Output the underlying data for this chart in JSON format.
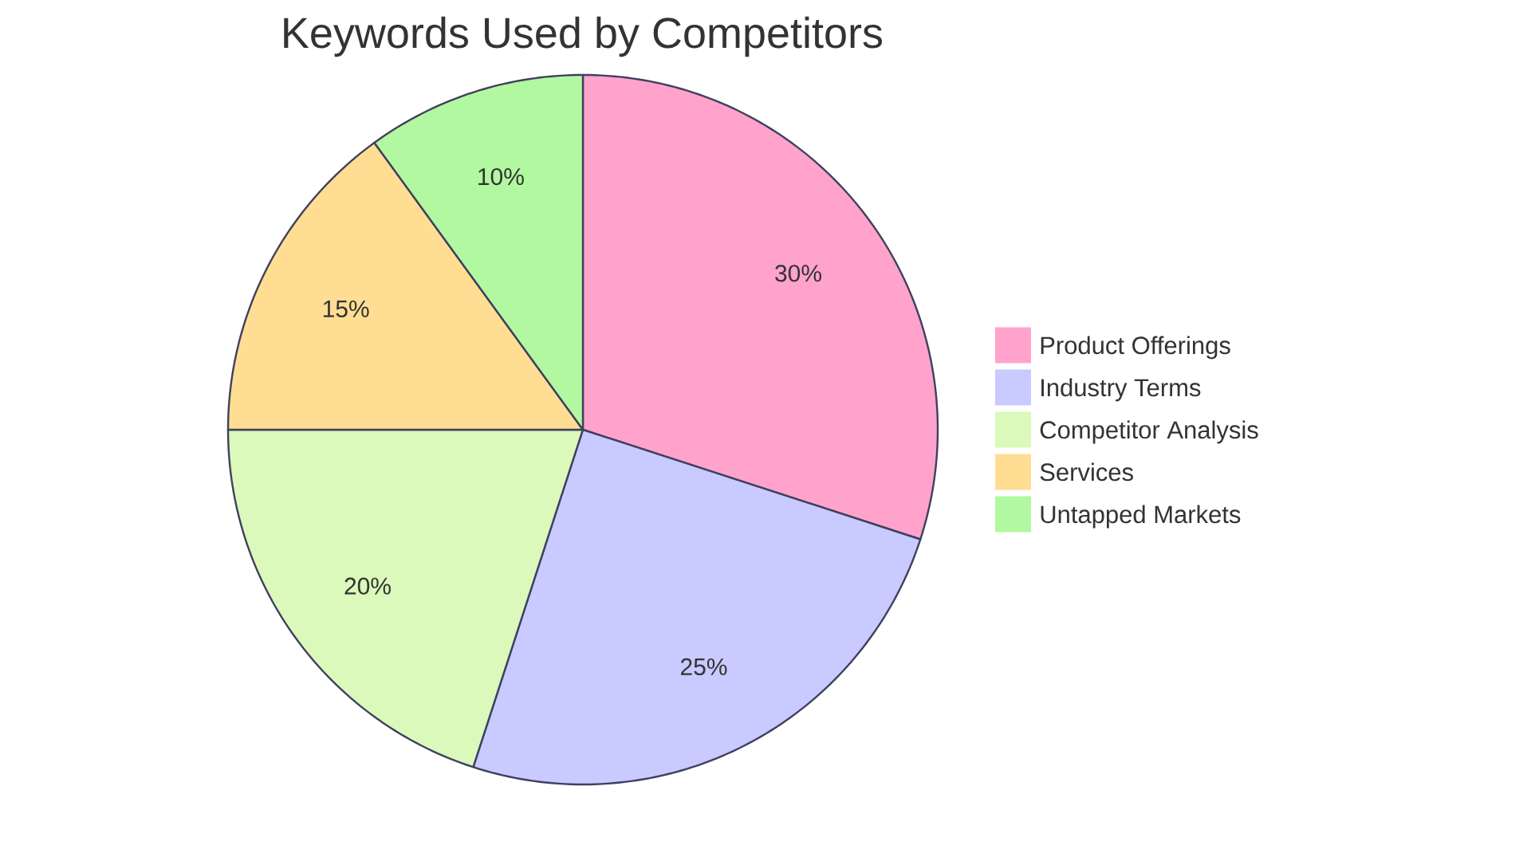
{
  "chart_data": {
    "type": "pie",
    "title": "Keywords Used by Competitors",
    "categories": [
      "Product Offerings",
      "Industry Terms",
      "Competitor Analysis",
      "Services",
      "Untapped Markets"
    ],
    "values": [
      30,
      25,
      20,
      15,
      10
    ],
    "colors": [
      "#ffa3cd",
      "#c9caff",
      "#daf9ba",
      "#ffde93",
      "#b2f8a0"
    ],
    "value_labels": [
      "30%",
      "25%",
      "20%",
      "15%",
      "10%"
    ],
    "legend": "right"
  }
}
